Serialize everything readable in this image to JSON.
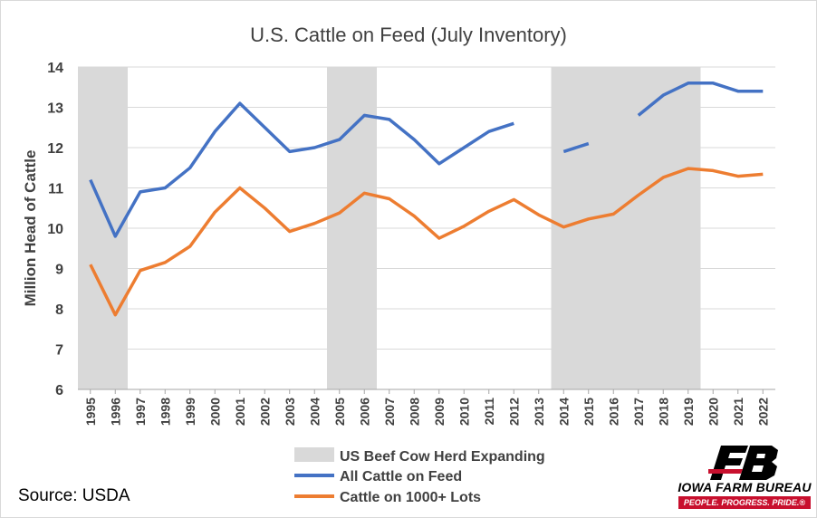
{
  "chart_data": {
    "type": "line",
    "title": "U.S. Cattle on Feed (July Inventory)",
    "xlabel": "",
    "ylabel": "Million Head of Cattle",
    "ylim": [
      6,
      14
    ],
    "yticks": [
      6,
      7,
      8,
      9,
      10,
      11,
      12,
      13,
      14
    ],
    "grid": true,
    "legend_position": "bottom",
    "categories": [
      "1995",
      "1996",
      "1997",
      "1998",
      "1999",
      "2000",
      "2001",
      "2002",
      "2003",
      "2004",
      "2005",
      "2006",
      "2007",
      "2008",
      "2009",
      "2010",
      "2011",
      "2012",
      "2013",
      "2014",
      "2015",
      "2016",
      "2017",
      "2018",
      "2019",
      "2020",
      "2021",
      "2022"
    ],
    "shaded_periods": {
      "name": "US Beef Cow Herd Expanding",
      "color": "#d9d9d9",
      "ranges": [
        [
          "1995",
          "1996"
        ],
        [
          "2005",
          "2006"
        ],
        [
          "2014",
          "2019"
        ]
      ]
    },
    "series": [
      {
        "name": "All Cattle on Feed",
        "color": "#4472c4",
        "values": [
          11.2,
          9.8,
          10.9,
          11.0,
          11.5,
          12.4,
          13.1,
          12.5,
          11.9,
          12.0,
          12.2,
          12.8,
          12.7,
          12.2,
          11.6,
          12.0,
          12.4,
          12.6,
          null,
          11.9,
          12.1,
          null,
          12.8,
          13.3,
          13.6,
          13.6,
          13.4,
          13.4
        ]
      },
      {
        "name": "Cattle on 1000+ Lots",
        "color": "#ed7d31",
        "values": [
          9.1,
          7.85,
          8.95,
          9.15,
          9.55,
          10.4,
          11.0,
          10.5,
          9.92,
          10.12,
          10.38,
          10.87,
          10.73,
          10.3,
          9.75,
          10.05,
          10.42,
          10.71,
          10.33,
          10.03,
          10.23,
          10.35,
          10.82,
          11.26,
          11.48,
          11.43,
          11.29,
          11.34
        ]
      }
    ]
  },
  "footer": {
    "source": "Source: USDA"
  },
  "logo": {
    "name": "IOWA FARM BUREAU",
    "tagline": "PEOPLE. PROGRESS. PRIDE.®"
  }
}
